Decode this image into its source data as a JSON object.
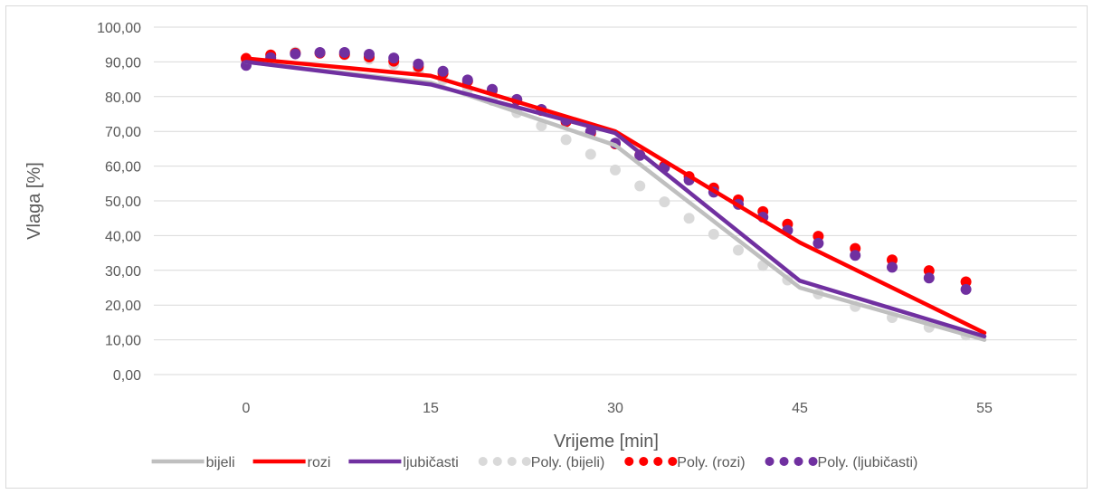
{
  "chart_data": {
    "type": "line",
    "title": "",
    "xlabel": "Vrijeme  [min]",
    "ylabel": "Vlaga [%]",
    "x_ticks": [
      "0",
      "15",
      "30",
      "45",
      "55"
    ],
    "y_ticks": [
      "0,00",
      "10,00",
      "20,00",
      "30,00",
      "40,00",
      "50,00",
      "60,00",
      "70,00",
      "80,00",
      "90,00",
      "100,00"
    ],
    "ylim": [
      0,
      100
    ],
    "grid": true,
    "legend_position": "bottom",
    "x": [
      0,
      15,
      30,
      45,
      55
    ],
    "series": [
      {
        "name": "bijeli",
        "values": [
          90,
          84,
          66,
          25,
          10
        ],
        "color": "#bfbfbf",
        "style": "solid"
      },
      {
        "name": "rozi",
        "values": [
          91,
          86,
          70,
          38,
          12
        ],
        "color": "#ff0000",
        "style": "solid"
      },
      {
        "name": "ljubičasti",
        "values": [
          90,
          83.5,
          69.5,
          27,
          11
        ],
        "color": "#7030a0",
        "style": "solid"
      }
    ],
    "trendlines": [
      {
        "name": "Poly. (bijeli)",
        "color": "#d9d9d9",
        "style": "dotted",
        "x": [
          0,
          2,
          4,
          6,
          8,
          10,
          12,
          14,
          16,
          18,
          20,
          22,
          24,
          26,
          28,
          30,
          32,
          34,
          36,
          38,
          40,
          42,
          44,
          46,
          48,
          50,
          52,
          54
        ],
        "values": [
          90,
          92,
          92.8,
          92.6,
          92,
          90.8,
          89.3,
          87.3,
          84.9,
          82,
          78.9,
          75.4,
          71.6,
          67.6,
          63.4,
          58.9,
          54.3,
          49.7,
          45,
          40.4,
          35.8,
          31.4,
          27.2,
          23.2,
          19.6,
          16.4,
          13.6,
          11.4
        ]
      },
      {
        "name": "Poly. (rozi)",
        "color": "#ff0000",
        "style": "dotted",
        "x": [
          0,
          2,
          4,
          6,
          8,
          10,
          12,
          14,
          16,
          18,
          20,
          22,
          24,
          26,
          28,
          30,
          32,
          34,
          36,
          38,
          40,
          42,
          44,
          46,
          48,
          50,
          52,
          54
        ],
        "values": [
          91,
          92,
          92.5,
          92.5,
          92.2,
          91.4,
          90.2,
          88.6,
          86.7,
          84.4,
          81.8,
          79,
          76,
          72.8,
          69.5,
          66.4,
          63.2,
          60.1,
          57,
          53.7,
          50.3,
          46.9,
          43.3,
          39.8,
          36.3,
          33,
          29.9,
          26.7
        ]
      },
      {
        "name": "Poly. (ljubičasti)",
        "color": "#7030a0",
        "style": "dotted",
        "x": [
          0,
          2,
          4,
          6,
          8,
          10,
          12,
          14,
          16,
          18,
          20,
          22,
          24,
          26,
          28,
          30,
          32,
          34,
          36,
          38,
          40,
          42,
          44,
          46,
          48,
          50,
          52,
          54
        ],
        "values": [
          89,
          91.2,
          92.3,
          92.7,
          92.7,
          92.2,
          91.1,
          89.4,
          87.3,
          84.8,
          82.1,
          79.2,
          76.3,
          73.2,
          70,
          66.6,
          63.1,
          59.6,
          56,
          52.5,
          49,
          45.3,
          41.5,
          37.8,
          34.3,
          30.9,
          27.8,
          24.5
        ]
      }
    ]
  },
  "legend": {
    "items": [
      "bijeli",
      "rozi",
      "ljubičasti",
      "Poly. (bijeli)",
      "Poly. (rozi)",
      "Poly. (ljubičasti)"
    ]
  }
}
